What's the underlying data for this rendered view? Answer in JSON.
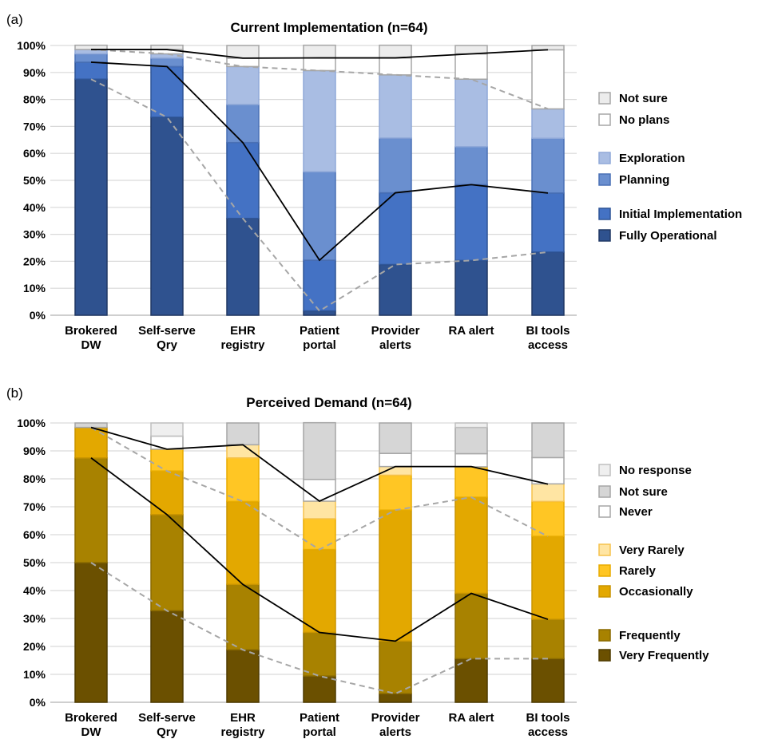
{
  "chart_data": [
    {
      "panel_label": "(a)",
      "type": "bar",
      "stacked": true,
      "percent": true,
      "title": "Current Implementation (n=64)",
      "categories": [
        [
          "Brokered",
          "DW"
        ],
        [
          "Self-serve",
          "Qry"
        ],
        [
          "EHR",
          "registry"
        ],
        [
          "Patient",
          "portal"
        ],
        [
          "Provider",
          "alerts"
        ],
        [
          "RA alert"
        ],
        [
          "BI tools",
          "access"
        ]
      ],
      "ylim": [
        0,
        100
      ],
      "yticks": [
        "0%",
        "10%",
        "20%",
        "30%",
        "40%",
        "50%",
        "60%",
        "70%",
        "80%",
        "90%",
        "100%"
      ],
      "grid": true,
      "legend_position": "right",
      "series": [
        {
          "name": "Fully Operational",
          "values": [
            87.5,
            73.4,
            35.9,
            1.6,
            18.8,
            20.3,
            23.4
          ],
          "color": "#2f528f",
          "border": "#203864"
        },
        {
          "name": "Initial Implementation",
          "values": [
            6.3,
            18.8,
            28.1,
            18.8,
            26.6,
            28.1,
            21.9
          ],
          "color": "#4472c4",
          "border": "#2f5597"
        },
        {
          "name": "Planning",
          "values": [
            3.1,
            3.1,
            14.1,
            32.8,
            20.3,
            14.1,
            20.3
          ],
          "color": "#6a8fcf",
          "border": "#4a70b5"
        },
        {
          "name": "Exploration",
          "values": [
            1.6,
            1.6,
            14.1,
            37.5,
            23.4,
            25.0,
            10.9
          ],
          "color": "#a9bde3",
          "border": "#8fa8d8"
        },
        {
          "name": "No plans",
          "values": [
            0.0,
            1.6,
            3.1,
            4.7,
            6.3,
            9.4,
            21.9
          ],
          "color": "#ffffff",
          "border": "#a6a6a6"
        },
        {
          "name": "Not sure",
          "values": [
            1.6,
            1.6,
            4.7,
            4.7,
            4.7,
            3.1,
            1.6
          ],
          "color": "#ececec",
          "border": "#a6a6a6"
        }
      ],
      "legend_groups": [
        [
          "Not sure",
          "No plans"
        ],
        [
          "Exploration",
          "Planning"
        ],
        [
          "Initial Implementation",
          "Fully Operational"
        ]
      ],
      "trend_lines": [
        {
          "boundary": 1,
          "style": "dashed",
          "values": [
            87.5,
            73.4,
            35.9,
            1.6,
            18.8,
            20.3,
            23.4
          ]
        },
        {
          "boundary": 2,
          "style": "solid",
          "values": [
            93.8,
            92.2,
            64.0,
            20.4,
            45.4,
            48.4,
            45.3
          ]
        },
        {
          "boundary": 4,
          "style": "dashed",
          "values": [
            98.5,
            96.9,
            92.2,
            90.7,
            89.1,
            87.5,
            76.5
          ]
        },
        {
          "boundary": 5,
          "style": "solid",
          "values": [
            98.5,
            98.5,
            95.3,
            95.4,
            95.4,
            96.9,
            98.4
          ]
        }
      ]
    },
    {
      "panel_label": "(b)",
      "type": "bar",
      "stacked": true,
      "percent": true,
      "title": "Perceived Demand (n=64)",
      "categories": [
        [
          "Brokered",
          "DW"
        ],
        [
          "Self-serve",
          "Qry"
        ],
        [
          "EHR",
          "registry"
        ],
        [
          "Patient",
          "portal"
        ],
        [
          "Provider",
          "alerts"
        ],
        [
          "RA alert"
        ],
        [
          "BI tools",
          "access"
        ]
      ],
      "ylim": [
        0,
        100
      ],
      "yticks": [
        "0%",
        "10%",
        "20%",
        "30%",
        "40%",
        "50%",
        "60%",
        "70%",
        "80%",
        "90%",
        "100%"
      ],
      "grid": true,
      "legend_position": "right",
      "series": [
        {
          "name": "Very Frequently",
          "values": [
            50.0,
            32.8,
            18.8,
            9.4,
            3.1,
            15.6,
            15.6
          ],
          "color": "#6b5000",
          "border": "#4f3b00"
        },
        {
          "name": "Frequently",
          "values": [
            37.5,
            34.4,
            23.4,
            15.6,
            18.8,
            23.4,
            14.1
          ],
          "color": "#a88200",
          "border": "#8a6a00"
        },
        {
          "name": "Occasionally",
          "values": [
            10.9,
            15.6,
            29.7,
            29.7,
            46.9,
            34.4,
            29.7
          ],
          "color": "#e3a800",
          "border": "#c99400"
        },
        {
          "name": "Rarely",
          "values": [
            0.0,
            7.8,
            15.6,
            11.0,
            12.5,
            10.9,
            12.5
          ],
          "color": "#ffc624",
          "border": "#e8ac00"
        },
        {
          "name": "Very Rarely",
          "values": [
            0.0,
            0.0,
            4.7,
            6.3,
            3.1,
            0.0,
            6.3
          ],
          "color": "#ffe5a3",
          "border": "#f5c24c"
        },
        {
          "name": "Never",
          "values": [
            0.0,
            4.7,
            0.0,
            7.8,
            4.7,
            4.7,
            9.4
          ],
          "color": "#ffffff",
          "border": "#a6a6a6"
        },
        {
          "name": "Not sure",
          "values": [
            1.6,
            0.0,
            7.8,
            20.3,
            10.9,
            9.4,
            12.4
          ],
          "color": "#d6d6d6",
          "border": "#a6a6a6"
        },
        {
          "name": "No response",
          "values": [
            0.0,
            4.7,
            0.0,
            0.0,
            0.0,
            1.6,
            0.0
          ],
          "color": "#efefef",
          "border": "#bfbfbf"
        }
      ],
      "legend_groups": [
        [
          "No response",
          "Not sure",
          "Never"
        ],
        [
          "Very Rarely",
          "Rarely",
          "Occasionally"
        ],
        [
          "Frequently",
          "Very Frequently"
        ]
      ],
      "trend_lines": [
        {
          "boundary": 1,
          "style": "dashed",
          "values": [
            50.0,
            32.8,
            18.8,
            9.4,
            3.1,
            15.6,
            15.6
          ]
        },
        {
          "boundary": 2,
          "style": "solid",
          "values": [
            87.5,
            67.2,
            42.2,
            25.0,
            21.9,
            39.0,
            29.7
          ]
        },
        {
          "boundary": 4,
          "style": "dashed",
          "values": [
            98.4,
            82.8,
            71.9,
            54.7,
            68.8,
            73.4,
            59.4
          ]
        },
        {
          "boundary": 5,
          "style": "solid",
          "values": [
            98.4,
            90.6,
            92.2,
            72.0,
            84.4,
            84.4,
            78.1
          ]
        }
      ]
    }
  ]
}
